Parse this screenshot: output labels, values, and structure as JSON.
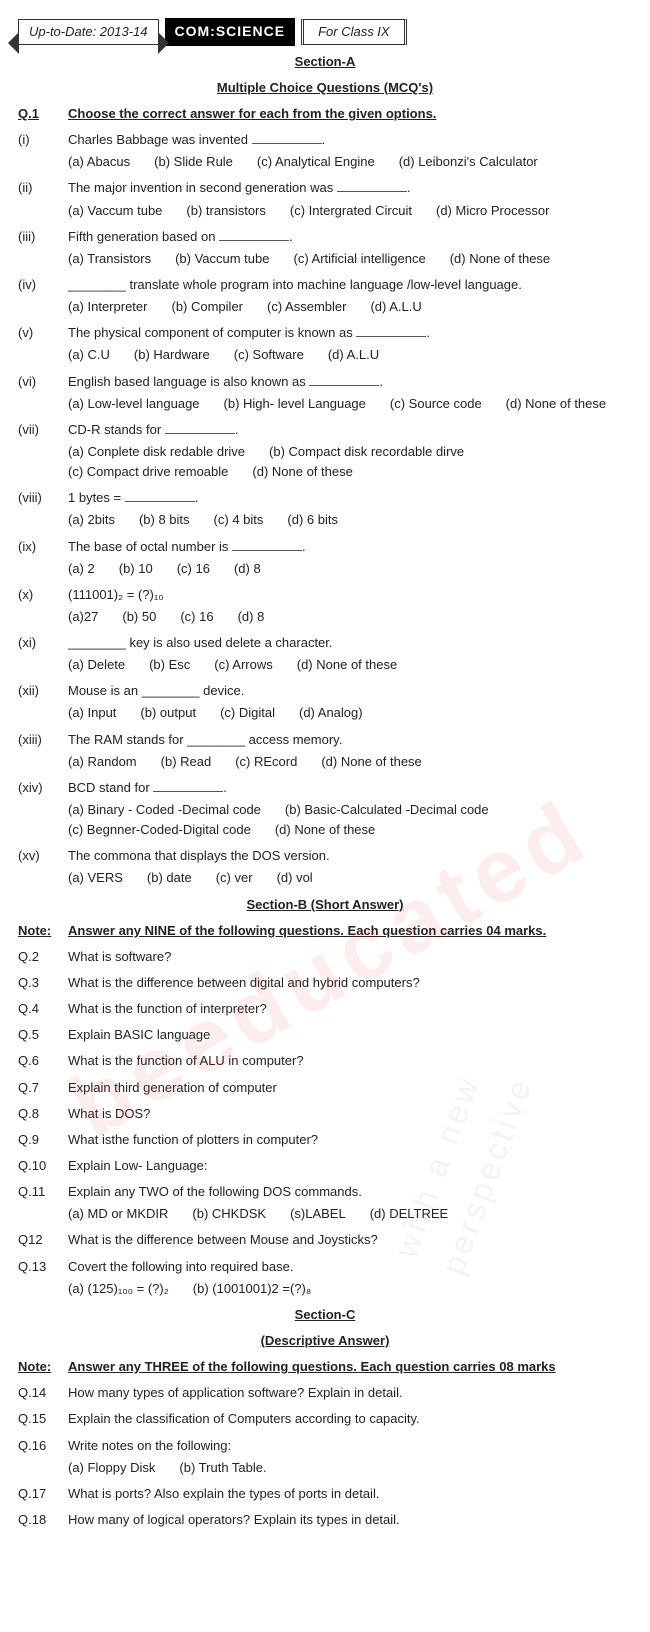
{
  "header": {
    "left": "Up-to-Date: 2013-14",
    "mid": "COM:SCIENCE",
    "right": "For Class IX"
  },
  "sectionA": {
    "title": "Section-A",
    "subtitle": "Multiple Choice Questions (MCQ's)",
    "q1label": "Q.1",
    "q1text": "Choose the correct answer for each from the given options.",
    "items": [
      {
        "n": "(i)",
        "q": "Charles Babbage was invented ",
        "opts": [
          "(a) Abacus",
          "(b) Slide Rule",
          "(c) Analytical Engine",
          "(d) Leibonzi's Calculator"
        ]
      },
      {
        "n": "(ii)",
        "q": "The major invention in second generation was ",
        "opts": [
          "(a) Vaccum tube",
          "(b) transistors",
          "(c) Intergrated Circuit",
          "(d) Micro Processor"
        ]
      },
      {
        "n": "(iii)",
        "q": "Fifth generation based on ",
        "opts": [
          "(a) Transistors",
          "(b) Vaccum tube",
          "(c) Artificial intelligence",
          "(d) None of these"
        ]
      },
      {
        "n": "(iv)",
        "q": "________ translate whole program into machine language /low-level language.",
        "opts": [
          "(a) Interpreter",
          "(b) Compiler",
          "(c) Assembler",
          "(d) A.L.U"
        ]
      },
      {
        "n": "(v)",
        "q": "The physical component of computer is known as ",
        "opts": [
          "(a) C.U",
          "(b) Hardware",
          "(c) Software",
          "(d) A.L.U"
        ]
      },
      {
        "n": "(vi)",
        "q": "English based language is also known as ",
        "opts": [
          "(a) Low-level language",
          "(b) High- level Language",
          "(c) Source code",
          "(d) None of these"
        ]
      },
      {
        "n": "(vii)",
        "q": "CD-R stands for ",
        "opts": [
          "(a) Conplete disk redable drive",
          "(b) Compact disk recordable dirve",
          "(c) Compact drive remoable",
          "(d) None of these"
        ]
      },
      {
        "n": "(viii)",
        "q": "1 bytes = ",
        "opts": [
          "(a) 2bits",
          "(b) 8 bits",
          "(c) 4 bits",
          "(d) 6 bits"
        ]
      },
      {
        "n": "(ix)",
        "q": "The base of octal number is ",
        "opts": [
          "(a) 2",
          "(b) 10",
          "(c) 16",
          "(d) 8"
        ]
      },
      {
        "n": "(x)",
        "q": "(111001)₂ = (?)₁₀",
        "opts": [
          "(a)27",
          "(b) 50",
          "(c) 16",
          "(d) 8"
        ]
      },
      {
        "n": "(xi)",
        "q": "________ key is also used delete a character.",
        "opts": [
          "(a) Delete",
          "(b) Esc",
          "(c) Arrows",
          "(d) None of these"
        ]
      },
      {
        "n": "(xii)",
        "q": "Mouse is an ________ device.",
        "opts": [
          "(a) Input",
          "(b) output",
          "(c) Digital",
          "(d) Analog)"
        ]
      },
      {
        "n": "(xiii)",
        "q": "The RAM stands for ______ access memory.",
        "opts": [
          "(a) Random",
          "(b) Read",
          "(c) REcord",
          "(d) None of these"
        ]
      },
      {
        "n": "(xiv)",
        "q": "BCD stand for ",
        "opts": [
          "(a) Binary - Coded -Decimal code",
          "(b) Basic-Calculated -Decimal code",
          "(c) Begnner-Coded-Digital code",
          "(d) None of these"
        ]
      },
      {
        "n": "(xv)",
        "q": "The commona that displays the DOS version.",
        "opts": [
          "(a) VERS",
          "(b) date",
          "(c) ver",
          "(d) vol"
        ]
      }
    ]
  },
  "sectionB": {
    "title": "Section-B (Short Answer)",
    "noteLabel": "Note:",
    "note": "Answer any NINE of the following questions. Each question carries 04 marks.",
    "items": [
      {
        "n": "Q.2",
        "q": "What is software?"
      },
      {
        "n": "Q.3",
        "q": "What is the difference between digital and hybrid computers?"
      },
      {
        "n": "Q.4",
        "q": "What is the function of interpreter?"
      },
      {
        "n": "Q.5",
        "q": "Explain BASIC language"
      },
      {
        "n": "Q.6",
        "q": "What is the function of ALU in computer?"
      },
      {
        "n": "Q.7",
        "q": "Explain third generation of computer"
      },
      {
        "n": "Q.8",
        "q": "What is DOS?"
      },
      {
        "n": "Q.9",
        "q": "What isthe function of plotters in computer?"
      },
      {
        "n": "Q.10",
        "q": "Explain Low- Language:"
      },
      {
        "n": "Q.11",
        "q": "Explain any TWO of the following DOS commands.",
        "opts": [
          "(a) MD or MKDIR",
          "(b) CHKDSK",
          "(s)LABEL",
          "(d) DELTREE"
        ]
      },
      {
        "n": "Q12",
        "q": "What is the difference between Mouse and Joysticks?"
      },
      {
        "n": "Q.13",
        "q": "Covert the following into required base.",
        "opts": [
          "(a) (125)₁₀₀ = (?)₂",
          "(b) (1001001)2 =(?)₈"
        ]
      }
    ]
  },
  "sectionC": {
    "title": "Section-C",
    "subtitle": "(Descriptive Answer)",
    "noteLabel": "Note:",
    "note": "Answer any THREE of the following questions. Each question carries 08 marks",
    "items": [
      {
        "n": "Q.14",
        "q": "How many types of application software? Explain in detail."
      },
      {
        "n": "Q.15",
        "q": "Explain the classification of Computers according to capacity."
      },
      {
        "n": "Q.16",
        "q": "Write notes on the following:",
        "opts": [
          "(a) Floppy Disk",
          "(b) Truth Table."
        ]
      },
      {
        "n": "Q.17",
        "q": "What is ports? Also explain the types of ports in detail."
      },
      {
        "n": "Q.18",
        "q": "How many of logical operators? Explain its types in detail."
      }
    ]
  }
}
